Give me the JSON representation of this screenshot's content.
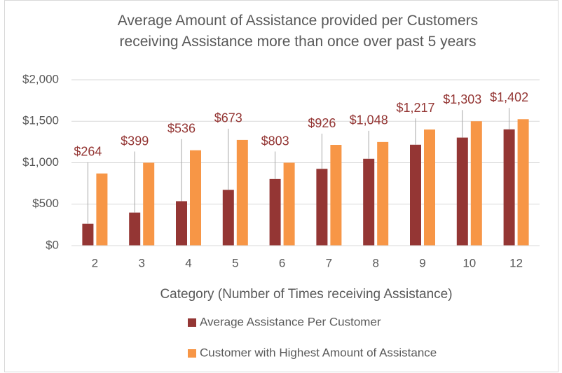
{
  "chart_data": {
    "type": "bar",
    "title": "Average Amount of Assistance provided per Customers receiving Assistance more than once over past 5 years",
    "x_label": "Category (Number of Times receiving Assistance)",
    "categories": [
      "2",
      "3",
      "4",
      "5",
      "6",
      "7",
      "8",
      "9",
      "10",
      "12"
    ],
    "series": [
      {
        "name": "Average Assistance Per Customer",
        "color": "#943634",
        "values": [
          264,
          399,
          536,
          673,
          803,
          926,
          1048,
          1217,
          1303,
          1402
        ],
        "value_labels": [
          "$264",
          "$399",
          "$536",
          "$673",
          "$803",
          "$926",
          "$1,048",
          "$1,217",
          "$1,303",
          "$1,402"
        ]
      },
      {
        "name": "Customer with Highest Amount of Assistance",
        "color": "#f79646",
        "values": [
          870,
          1000,
          1150,
          1275,
          1000,
          1215,
          1250,
          1400,
          1500,
          1525
        ]
      }
    ],
    "ylim": [
      0,
      2000
    ],
    "yticks": [
      {
        "value": 0,
        "label": "$0"
      },
      {
        "value": 500,
        "label": "$500"
      },
      {
        "value": 1000,
        "label": "$1,000"
      },
      {
        "value": 1500,
        "label": "$1,500"
      },
      {
        "value": 2000,
        "label": "$2,000"
      }
    ],
    "grid": true,
    "legend": "bottom"
  }
}
